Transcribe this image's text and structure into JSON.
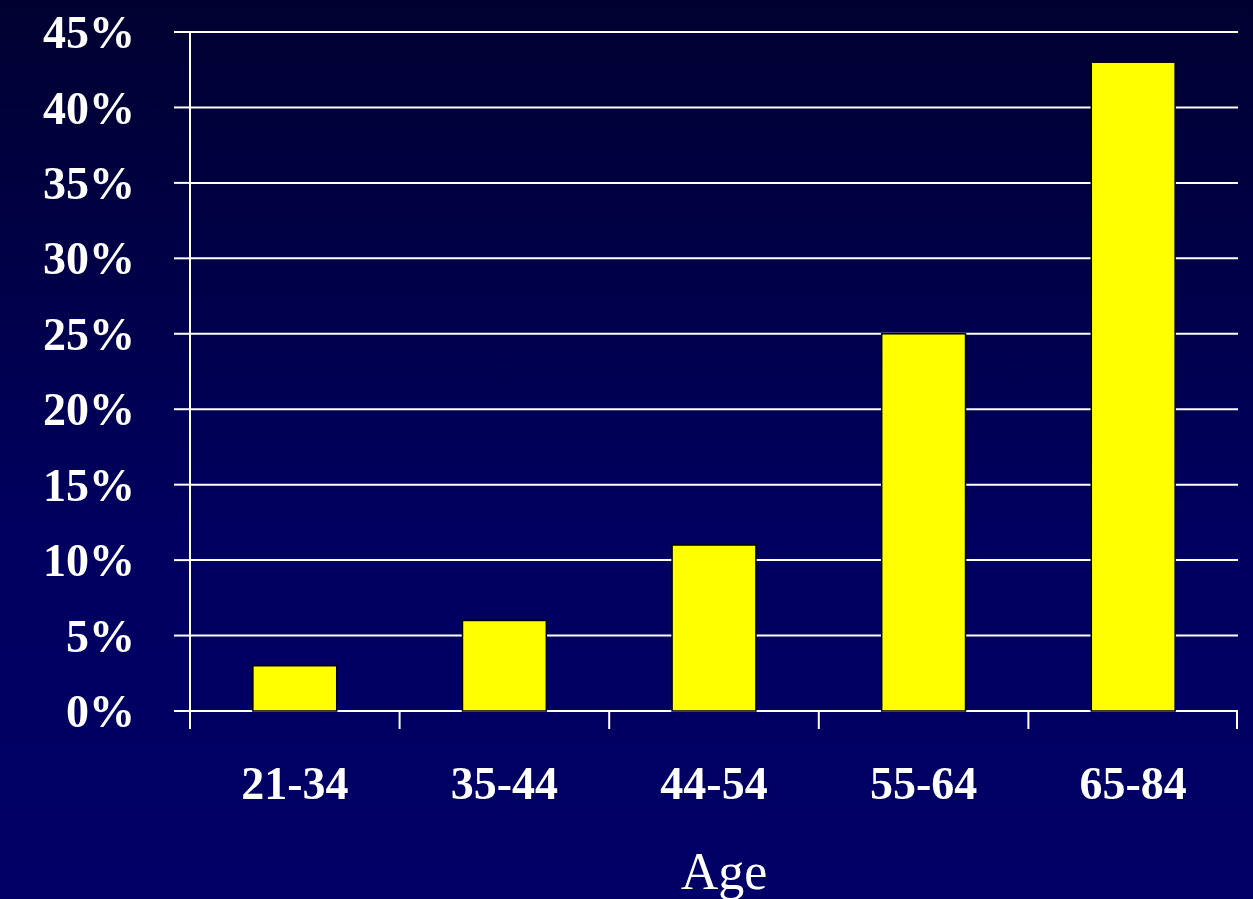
{
  "chart_data": {
    "type": "bar",
    "xlabel": "Age",
    "categories": [
      "21-34",
      "35-44",
      "44-54",
      "55-64",
      "65-84"
    ],
    "values": [
      3,
      6,
      11,
      25,
      43
    ],
    "color": "#ffff00",
    "ylim": [
      0,
      45
    ],
    "yticks": [
      {
        "value": 0,
        "label": "0%"
      },
      {
        "value": 5,
        "label": "5%"
      },
      {
        "value": 10,
        "label": "10%"
      },
      {
        "value": 15,
        "label": "15%"
      },
      {
        "value": 20,
        "label": "20%"
      },
      {
        "value": 25,
        "label": "25%"
      },
      {
        "value": 30,
        "label": "30%"
      },
      {
        "value": 35,
        "label": "35%"
      },
      {
        "value": 40,
        "label": "40%"
      },
      {
        "value": 45,
        "label": "45%"
      }
    ],
    "grid": "y"
  }
}
